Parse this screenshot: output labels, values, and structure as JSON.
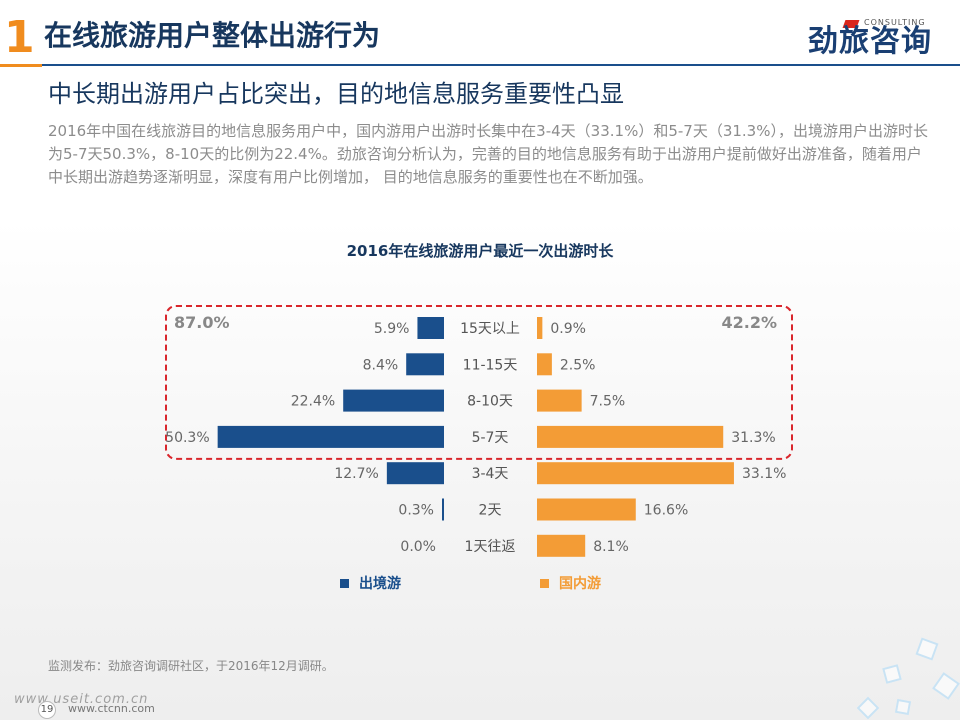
{
  "header": {
    "section_number": "1",
    "title": "在线旅游用户整体出游行为",
    "logo_text": "劲旅咨询",
    "logo_sub": "CONSULTING"
  },
  "subtitle": "中长期出游用户占比突出，目的地信息服务重要性凸显",
  "paragraph": "2016年中国在线旅游目的地信息服务用户中，国内游用户出游时长集中在3-4天（33.1%）和5-7天（31.3%），出境游用户出游时长为5-7天50.3%，8-10天的比例为22.4%。劲旅咨询分析认为，完善的目的地信息服务有助于出游用户提前做好出游准备，随着用户中长期出游趋势逐渐明显，深度有用户比例增加， 目的地信息服务的重要性也在不断加强。",
  "chart_data": {
    "type": "bar",
    "title": "2016年在线旅游用户最近一次出游时长",
    "categories": [
      "15天以上",
      "11-15天",
      "8-10天",
      "5-7天",
      "3-4天",
      "2天",
      "1天往返"
    ],
    "series": [
      {
        "name": "出境游",
        "values": [
          5.9,
          8.4,
          22.4,
          50.3,
          12.7,
          0.3,
          0.0
        ],
        "labels": [
          "5.9%",
          "8.4%",
          "22.4%",
          "50.3%",
          "12.7%",
          "0.3%",
          "0.0%"
        ],
        "color": "#1a4f8c"
      },
      {
        "name": "国内游",
        "values": [
          0.9,
          2.5,
          7.5,
          31.3,
          33.1,
          16.6,
          8.1
        ],
        "labels": [
          "0.9%",
          "2.5%",
          "7.5%",
          "31.3%",
          "33.1%",
          "16.6%",
          "8.1%"
        ],
        "color": "#f39c36"
      }
    ],
    "annotations": {
      "left_total": "87.0%",
      "right_total": "42.2%",
      "highlight_color": "#d9262c"
    },
    "legend_position": "bottom"
  },
  "footnote": "监测发布：劲旅咨询调研社区，于2016年12月调研。",
  "page_number": "19",
  "watermark": "www.useit.com.cn",
  "watermark2": "www.ctcnn.com"
}
